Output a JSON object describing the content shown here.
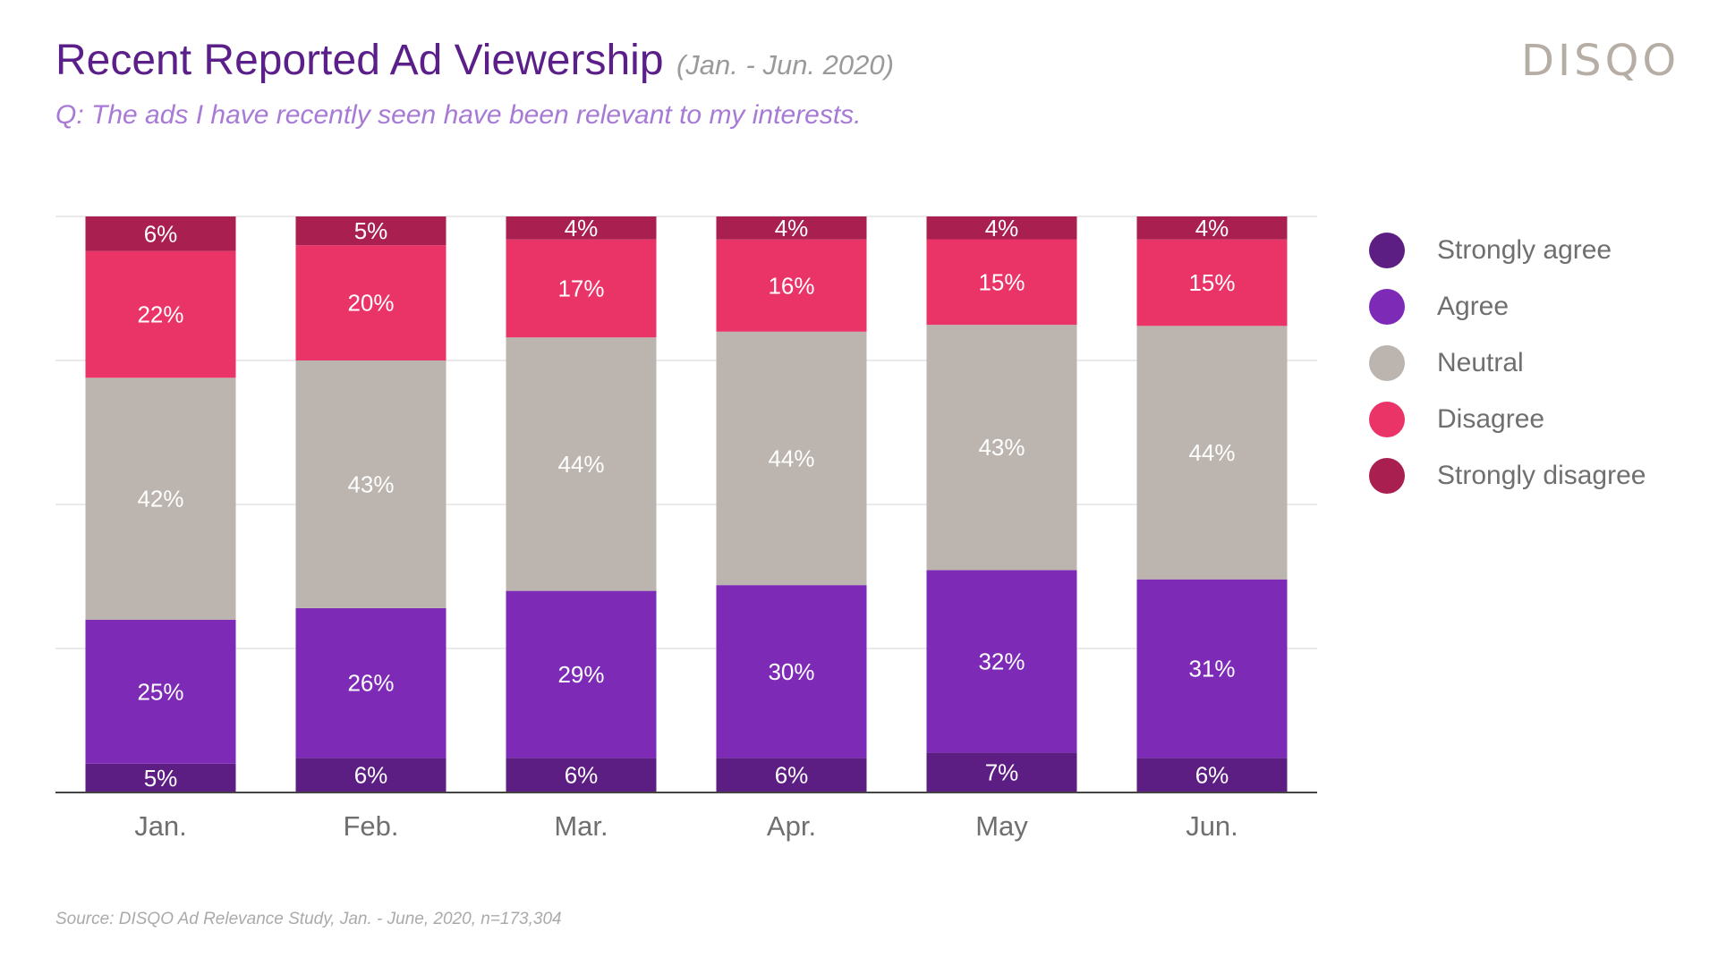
{
  "header": {
    "title": "Recent Reported Ad Viewership",
    "date_range": "(Jan. - Jun. 2020)",
    "subtitle": "Q: The ads I have recently seen have been relevant to my interests.",
    "logo": "DISQO"
  },
  "footer": {
    "source": "Source: DISQO Ad Relevance Study, Jan. - June, 2020, n=173,304"
  },
  "chart_data": {
    "type": "bar",
    "stacked": true,
    "percent_stacked": true,
    "title": "Recent Reported Ad Viewership",
    "categories": [
      "Jan.",
      "Feb.",
      "Mar.",
      "Apr.",
      "May",
      "Jun."
    ],
    "ylim": [
      0,
      100
    ],
    "grid": true,
    "legend_position": "right",
    "series": [
      {
        "name": "Strongly agree",
        "color": "#5c1e82",
        "values": [
          5,
          6,
          6,
          6,
          7,
          6
        ]
      },
      {
        "name": "Agree",
        "color": "#7d2bb6",
        "values": [
          25,
          26,
          29,
          30,
          32,
          31
        ]
      },
      {
        "name": "Neutral",
        "color": "#bcb4ae",
        "values": [
          42,
          43,
          44,
          44,
          43,
          44
        ]
      },
      {
        "name": "Disagree",
        "color": "#ea3468",
        "values": [
          22,
          20,
          17,
          16,
          15,
          15
        ]
      },
      {
        "name": "Strongly disagree",
        "color": "#a91f4f",
        "values": [
          6,
          5,
          4,
          4,
          4,
          4
        ]
      }
    ]
  }
}
